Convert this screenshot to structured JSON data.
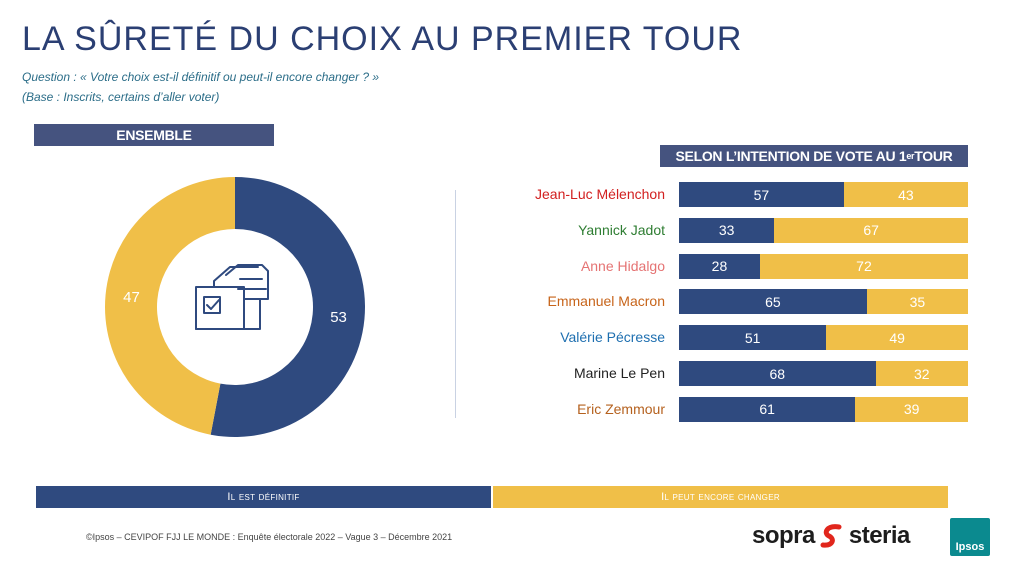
{
  "title": "LA SÛRETÉ DU CHOIX AU PREMIER TOUR",
  "question": "Question : « Votre choix est-il définitif ou peut-il encore changer ? »",
  "base": "(Base : Inscrits, certains d’aller voter)",
  "ensemble_header": "ENSEMBLE",
  "vote_header": {
    "text": "SELON L’INTENTION DE VOTE AU 1",
    "sup": "er",
    "suffix": " TOUR"
  },
  "legend": {
    "definitive": "Il est définitif",
    "can_change": "Il peut encore changer"
  },
  "footer": "©Ipsos – CEVIPOF FJJ LE MONDE : Enquête électorale 2022 – Vague 3 – Décembre 2021",
  "logos": {
    "sopra_left": "sopra",
    "sopra_right": "steria",
    "ipsos": "Ipsos"
  },
  "colors": {
    "definitive": "#2f4a7f",
    "can_change": "#f0bf48"
  },
  "chart_data": [
    {
      "type": "pie",
      "labels": [
        "Il est définitif",
        "Il peut encore changer"
      ],
      "values": [
        53,
        47
      ],
      "colors": [
        "#2f4a7f",
        "#f0bf48"
      ]
    },
    {
      "type": "bar",
      "stacked": true,
      "orientation": "horizontal",
      "categories": [
        "Jean-Luc Mélenchon",
        "Yannick Jadot",
        "Anne Hidalgo",
        "Emmanuel Macron",
        "Valérie Pécresse",
        "Marine Le Pen",
        "Eric Zemmour"
      ],
      "category_colors": [
        "#d22020",
        "#2e7d32",
        "#e57373",
        "#c7641a",
        "#1e6fb0",
        "#222222",
        "#b5611e"
      ],
      "series": [
        {
          "name": "Il est définitif",
          "values": [
            57,
            33,
            28,
            65,
            51,
            68,
            61
          ]
        },
        {
          "name": "Il peut encore changer",
          "values": [
            43,
            67,
            72,
            35,
            49,
            32,
            39
          ]
        }
      ]
    }
  ]
}
